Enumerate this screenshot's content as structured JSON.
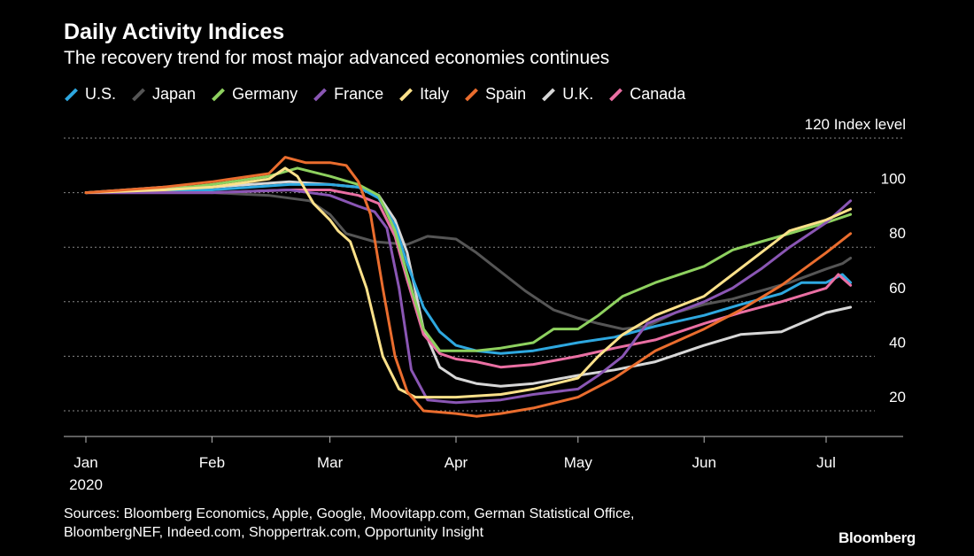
{
  "title": "Daily Activity Indices",
  "subtitle": "The recovery trend for most major advanced economies continues",
  "sources_line1": "Sources: Bloomberg Economics, Apple, Google, Moovitapp.com, German Statistical Office,",
  "sources_line2": "BloombergNEF, Indeed.com, Shoppertrak.com, Opportunity Insight",
  "brand": "Bloomberg",
  "chart_data": {
    "type": "line",
    "title": "Daily Activity Indices",
    "subtitle": "The recovery trend for most major advanced economies continues",
    "ylabel": "Index level",
    "ylim": [
      10,
      120
    ],
    "yticks": [
      {
        "value": 120,
        "label": "120"
      },
      {
        "value": 100,
        "label": "100"
      },
      {
        "value": 80,
        "label": "80"
      },
      {
        "value": 60,
        "label": "60"
      },
      {
        "value": 40,
        "label": "40"
      },
      {
        "value": 20,
        "label": "20"
      }
    ],
    "xlim": [
      "2020-01-01",
      "2020-07-09"
    ],
    "xticks": [
      {
        "date": "2020-01-01",
        "label": "Jan",
        "sublabel": "2020"
      },
      {
        "date": "2020-02-01",
        "label": "Feb",
        "sublabel": ""
      },
      {
        "date": "2020-03-01",
        "label": "Mar",
        "sublabel": ""
      },
      {
        "date": "2020-04-01",
        "label": "Apr",
        "sublabel": ""
      },
      {
        "date": "2020-05-01",
        "label": "May",
        "sublabel": ""
      },
      {
        "date": "2020-06-01",
        "label": "Jun",
        "sublabel": ""
      },
      {
        "date": "2020-07-01",
        "label": "Jul",
        "sublabel": ""
      }
    ],
    "grid": true,
    "legend_position": "top",
    "series": [
      {
        "name": "Japan",
        "color": "#555555",
        "points": [
          [
            "2020-01-01",
            100
          ],
          [
            "2020-01-15",
            101
          ],
          [
            "2020-02-01",
            100
          ],
          [
            "2020-02-15",
            99
          ],
          [
            "2020-02-25",
            97
          ],
          [
            "2020-03-01",
            92
          ],
          [
            "2020-03-05",
            85
          ],
          [
            "2020-03-12",
            82
          ],
          [
            "2020-03-20",
            81
          ],
          [
            "2020-03-25",
            84
          ],
          [
            "2020-04-01",
            83
          ],
          [
            "2020-04-06",
            78
          ],
          [
            "2020-04-12",
            71
          ],
          [
            "2020-04-18",
            64
          ],
          [
            "2020-04-25",
            57
          ],
          [
            "2020-05-01",
            54
          ],
          [
            "2020-05-06",
            52
          ],
          [
            "2020-05-12",
            50
          ],
          [
            "2020-05-18",
            51
          ],
          [
            "2020-05-25",
            56
          ],
          [
            "2020-06-01",
            59
          ],
          [
            "2020-06-08",
            61
          ],
          [
            "2020-06-15",
            64
          ],
          [
            "2020-06-22",
            67
          ],
          [
            "2020-07-01",
            72
          ],
          [
            "2020-07-05",
            74
          ],
          [
            "2020-07-07",
            76
          ]
        ]
      },
      {
        "name": "U.K.",
        "color": "#d7d7d7",
        "points": [
          [
            "2020-01-01",
            100
          ],
          [
            "2020-01-20",
            102
          ],
          [
            "2020-02-01",
            102
          ],
          [
            "2020-02-20",
            104
          ],
          [
            "2020-03-01",
            103
          ],
          [
            "2020-03-08",
            102
          ],
          [
            "2020-03-13",
            99
          ],
          [
            "2020-03-17",
            90
          ],
          [
            "2020-03-20",
            78
          ],
          [
            "2020-03-24",
            50
          ],
          [
            "2020-03-28",
            36
          ],
          [
            "2020-04-01",
            32
          ],
          [
            "2020-04-06",
            30
          ],
          [
            "2020-04-12",
            29
          ],
          [
            "2020-04-20",
            30
          ],
          [
            "2020-05-01",
            33
          ],
          [
            "2020-05-10",
            35
          ],
          [
            "2020-05-20",
            38
          ],
          [
            "2020-06-01",
            44
          ],
          [
            "2020-06-10",
            48
          ],
          [
            "2020-06-20",
            49
          ],
          [
            "2020-07-01",
            56
          ],
          [
            "2020-07-07",
            58
          ]
        ]
      },
      {
        "name": "U.S.",
        "color": "#2ea8e0",
        "points": [
          [
            "2020-01-01",
            100
          ],
          [
            "2020-01-20",
            101
          ],
          [
            "2020-02-01",
            101
          ],
          [
            "2020-02-20",
            103
          ],
          [
            "2020-03-01",
            103
          ],
          [
            "2020-03-08",
            102
          ],
          [
            "2020-03-13",
            98
          ],
          [
            "2020-03-17",
            88
          ],
          [
            "2020-03-20",
            74
          ],
          [
            "2020-03-24",
            58
          ],
          [
            "2020-03-28",
            49
          ],
          [
            "2020-04-01",
            44
          ],
          [
            "2020-04-06",
            42
          ],
          [
            "2020-04-12",
            41
          ],
          [
            "2020-04-20",
            42
          ],
          [
            "2020-05-01",
            45
          ],
          [
            "2020-05-10",
            47
          ],
          [
            "2020-05-20",
            51
          ],
          [
            "2020-06-01",
            55
          ],
          [
            "2020-06-10",
            59
          ],
          [
            "2020-06-20",
            63
          ],
          [
            "2020-06-25",
            67
          ],
          [
            "2020-07-01",
            67
          ],
          [
            "2020-07-05",
            70
          ],
          [
            "2020-07-07",
            67
          ]
        ]
      },
      {
        "name": "Canada",
        "color": "#ea6fa3",
        "points": [
          [
            "2020-01-01",
            100
          ],
          [
            "2020-01-20",
            100
          ],
          [
            "2020-02-01",
            100
          ],
          [
            "2020-02-20",
            101
          ],
          [
            "2020-03-01",
            101
          ],
          [
            "2020-03-08",
            99
          ],
          [
            "2020-03-13",
            96
          ],
          [
            "2020-03-17",
            84
          ],
          [
            "2020-03-20",
            68
          ],
          [
            "2020-03-24",
            48
          ],
          [
            "2020-03-28",
            41
          ],
          [
            "2020-04-01",
            39
          ],
          [
            "2020-04-06",
            38
          ],
          [
            "2020-04-12",
            36
          ],
          [
            "2020-04-20",
            37
          ],
          [
            "2020-05-01",
            40
          ],
          [
            "2020-05-10",
            43
          ],
          [
            "2020-05-20",
            46
          ],
          [
            "2020-06-01",
            52
          ],
          [
            "2020-06-10",
            56
          ],
          [
            "2020-06-20",
            60
          ],
          [
            "2020-07-01",
            65
          ],
          [
            "2020-07-04",
            70
          ],
          [
            "2020-07-07",
            66
          ]
        ]
      },
      {
        "name": "Germany",
        "color": "#8ed15f",
        "points": [
          [
            "2020-01-01",
            100
          ],
          [
            "2020-01-20",
            101
          ],
          [
            "2020-02-01",
            103
          ],
          [
            "2020-02-15",
            106
          ],
          [
            "2020-02-22",
            109
          ],
          [
            "2020-03-01",
            106
          ],
          [
            "2020-03-08",
            103
          ],
          [
            "2020-03-13",
            99
          ],
          [
            "2020-03-17",
            86
          ],
          [
            "2020-03-20",
            70
          ],
          [
            "2020-03-24",
            50
          ],
          [
            "2020-03-28",
            42
          ],
          [
            "2020-04-01",
            42
          ],
          [
            "2020-04-06",
            42
          ],
          [
            "2020-04-12",
            43
          ],
          [
            "2020-04-20",
            45
          ],
          [
            "2020-04-25",
            50
          ],
          [
            "2020-05-01",
            50
          ],
          [
            "2020-05-06",
            55
          ],
          [
            "2020-05-12",
            62
          ],
          [
            "2020-05-20",
            67
          ],
          [
            "2020-06-01",
            73
          ],
          [
            "2020-06-08",
            79
          ],
          [
            "2020-06-15",
            82
          ],
          [
            "2020-06-22",
            85
          ],
          [
            "2020-07-01",
            89
          ],
          [
            "2020-07-07",
            92
          ]
        ]
      },
      {
        "name": "France",
        "color": "#8a56b4",
        "points": [
          [
            "2020-01-01",
            100
          ],
          [
            "2020-01-20",
            100
          ],
          [
            "2020-02-01",
            100
          ],
          [
            "2020-02-20",
            101
          ],
          [
            "2020-03-01",
            99
          ],
          [
            "2020-03-08",
            95
          ],
          [
            "2020-03-12",
            93
          ],
          [
            "2020-03-15",
            87
          ],
          [
            "2020-03-18",
            65
          ],
          [
            "2020-03-21",
            35
          ],
          [
            "2020-03-25",
            24
          ],
          [
            "2020-04-01",
            23
          ],
          [
            "2020-04-12",
            24
          ],
          [
            "2020-04-20",
            26
          ],
          [
            "2020-05-01",
            28
          ],
          [
            "2020-05-06",
            33
          ],
          [
            "2020-05-12",
            40
          ],
          [
            "2020-05-18",
            52
          ],
          [
            "2020-05-25",
            56
          ],
          [
            "2020-06-01",
            60
          ],
          [
            "2020-06-08",
            65
          ],
          [
            "2020-06-15",
            72
          ],
          [
            "2020-06-22",
            80
          ],
          [
            "2020-07-01",
            89
          ],
          [
            "2020-07-07",
            97
          ]
        ]
      },
      {
        "name": "Italy",
        "color": "#fce18a",
        "points": [
          [
            "2020-01-01",
            100
          ],
          [
            "2020-01-20",
            101
          ],
          [
            "2020-02-01",
            102
          ],
          [
            "2020-02-15",
            105
          ],
          [
            "2020-02-19",
            109
          ],
          [
            "2020-02-22",
            106
          ],
          [
            "2020-02-26",
            96
          ],
          [
            "2020-03-01",
            90
          ],
          [
            "2020-03-03",
            86
          ],
          [
            "2020-03-06",
            82
          ],
          [
            "2020-03-10",
            65
          ],
          [
            "2020-03-14",
            40
          ],
          [
            "2020-03-18",
            28
          ],
          [
            "2020-03-22",
            25
          ],
          [
            "2020-04-01",
            25
          ],
          [
            "2020-04-12",
            26
          ],
          [
            "2020-04-20",
            28
          ],
          [
            "2020-05-01",
            32
          ],
          [
            "2020-05-06",
            40
          ],
          [
            "2020-05-12",
            48
          ],
          [
            "2020-05-20",
            55
          ],
          [
            "2020-06-01",
            62
          ],
          [
            "2020-06-08",
            70
          ],
          [
            "2020-06-15",
            78
          ],
          [
            "2020-06-22",
            86
          ],
          [
            "2020-07-01",
            90
          ],
          [
            "2020-07-07",
            94
          ]
        ]
      },
      {
        "name": "Spain",
        "color": "#ea6d2e",
        "points": [
          [
            "2020-01-01",
            100
          ],
          [
            "2020-01-20",
            102
          ],
          [
            "2020-02-01",
            104
          ],
          [
            "2020-02-15",
            107
          ],
          [
            "2020-02-19",
            113
          ],
          [
            "2020-02-24",
            111
          ],
          [
            "2020-03-01",
            111
          ],
          [
            "2020-03-05",
            110
          ],
          [
            "2020-03-08",
            104
          ],
          [
            "2020-03-11",
            92
          ],
          [
            "2020-03-14",
            65
          ],
          [
            "2020-03-17",
            40
          ],
          [
            "2020-03-20",
            27
          ],
          [
            "2020-03-24",
            20
          ],
          [
            "2020-04-01",
            19
          ],
          [
            "2020-04-06",
            18
          ],
          [
            "2020-04-12",
            19
          ],
          [
            "2020-04-20",
            21
          ],
          [
            "2020-05-01",
            25
          ],
          [
            "2020-05-10",
            32
          ],
          [
            "2020-05-20",
            42
          ],
          [
            "2020-06-01",
            50
          ],
          [
            "2020-06-10",
            57
          ],
          [
            "2020-06-20",
            66
          ],
          [
            "2020-07-01",
            78
          ],
          [
            "2020-07-07",
            85
          ]
        ]
      }
    ]
  }
}
